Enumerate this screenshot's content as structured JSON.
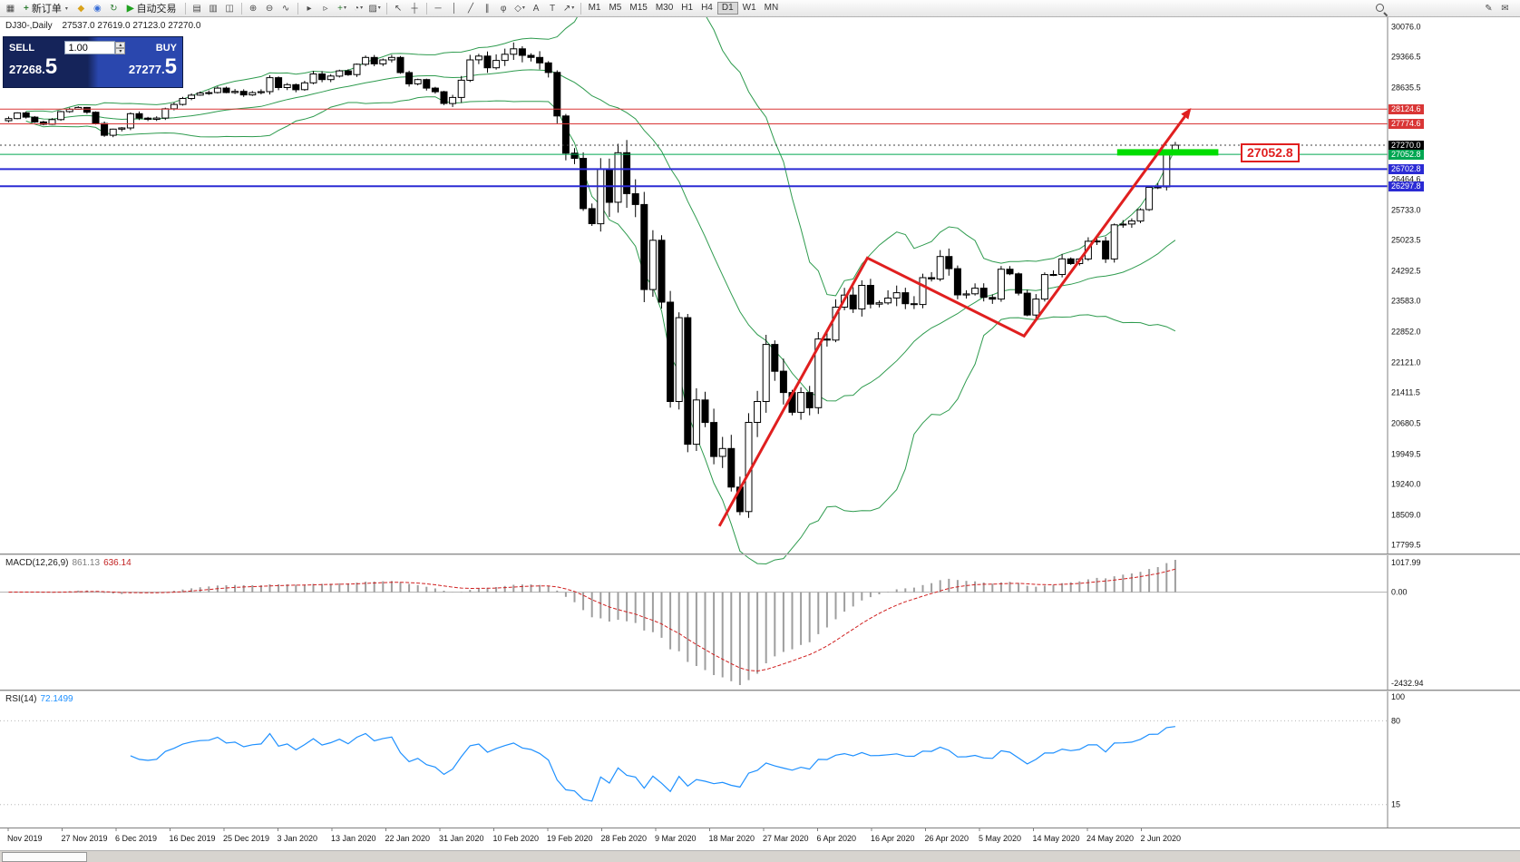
{
  "toolbar": {
    "dd_glyph": "▾",
    "items": [
      {
        "t": "icon",
        "name": "chart-window-icon",
        "g": "▦"
      },
      {
        "t": "btn",
        "name": "new-order-button",
        "g": "+",
        "gc": "#2e7d32",
        "label": "新订单",
        "dd": true
      },
      {
        "t": "icon",
        "name": "alerts-icon",
        "g": "◆",
        "c": "#d9a21b"
      },
      {
        "t": "icon",
        "name": "community-icon",
        "g": "◉",
        "c": "#3a6fd8"
      },
      {
        "t": "icon",
        "name": "refresh-icon",
        "g": "↻",
        "c": "#2e7d32"
      },
      {
        "t": "btn",
        "name": "autotrading-button",
        "g": "▶",
        "gc": "#1fa11f",
        "label": "自动交易"
      },
      {
        "t": "sep"
      },
      {
        "t": "icon",
        "name": "tile-windows-icon",
        "g": "▤"
      },
      {
        "t": "icon",
        "name": "bar-chart-icon",
        "g": "▥"
      },
      {
        "t": "icon",
        "name": "candlestick-chart-icon",
        "g": "◫"
      },
      {
        "t": "sep"
      },
      {
        "t": "icon",
        "name": "zoom-in-icon",
        "g": "⊕"
      },
      {
        "t": "icon",
        "name": "zoom-out-icon",
        "g": "⊖"
      },
      {
        "t": "icon",
        "name": "line-chart-icon",
        "g": "∿"
      },
      {
        "t": "sep"
      },
      {
        "t": "icon",
        "name": "auto-scroll-icon",
        "g": "▸"
      },
      {
        "t": "icon",
        "name": "chart-shift-icon",
        "g": "▹"
      },
      {
        "t": "icon",
        "name": "indicators-icon",
        "g": "+",
        "c": "#2e7d32",
        "dd": true
      },
      {
        "t": "icon",
        "name": "periods-icon",
        "g": "◔",
        "dd": true
      },
      {
        "t": "icon",
        "name": "templates-icon",
        "g": "▨",
        "dd": true
      },
      {
        "t": "sep"
      },
      {
        "t": "icon",
        "name": "cursor-icon",
        "g": "↖"
      },
      {
        "t": "icon",
        "name": "crosshair-icon",
        "g": "┼"
      },
      {
        "t": "sep"
      },
      {
        "t": "icon",
        "name": "horizontal-line-icon",
        "g": "─"
      },
      {
        "t": "icon",
        "name": "vertical-line-icon",
        "g": "│"
      },
      {
        "t": "icon",
        "name": "trendline-icon",
        "g": "╱"
      },
      {
        "t": "icon",
        "name": "channel-icon",
        "g": "∥"
      },
      {
        "t": "icon",
        "name": "fibonacci-icon",
        "g": "φ"
      },
      {
        "t": "icon",
        "name": "shapes-icon",
        "g": "◇",
        "dd": true
      },
      {
        "t": "icon",
        "name": "text-icon",
        "g": "A"
      },
      {
        "t": "icon",
        "name": "label-icon",
        "g": "T"
      },
      {
        "t": "icon",
        "name": "arrows-icon",
        "g": "↗",
        "dd": true
      },
      {
        "t": "sep"
      },
      {
        "t": "tf",
        "name": "timeframe-button-m1",
        "label": "M1"
      },
      {
        "t": "tf",
        "name": "timeframe-button-m5",
        "label": "M5"
      },
      {
        "t": "tf",
        "name": "timeframe-button-m15",
        "label": "M15"
      },
      {
        "t": "tf",
        "name": "timeframe-button-m30",
        "label": "M30"
      },
      {
        "t": "tf",
        "name": "timeframe-button-h1",
        "label": "H1"
      },
      {
        "t": "tf",
        "name": "timeframe-button-h4",
        "label": "H4"
      },
      {
        "t": "tf",
        "name": "timeframe-button-d1",
        "label": "D1",
        "active": true
      },
      {
        "t": "tf",
        "name": "timeframe-button-w1",
        "label": "W1"
      },
      {
        "t": "tf",
        "name": "timeframe-button-mn",
        "label": "MN"
      },
      {
        "t": "flex"
      },
      {
        "t": "mag",
        "name": "search-icon"
      },
      {
        "t": "space",
        "w": 100
      },
      {
        "t": "icon",
        "name": "pencil-icon",
        "g": "✎"
      },
      {
        "t": "icon",
        "name": "mail-icon",
        "g": "✉"
      },
      {
        "t": "space",
        "w": 4
      }
    ]
  },
  "chart": {
    "symbol_period": "DJ30-,Daily",
    "ohlc_text": "27537.0 27619.0 27123.0 27270.0"
  },
  "trade_panel": {
    "sell_label": "SELL",
    "buy_label": "BUY",
    "volume": "1.00",
    "volume_up_glyph": "▴",
    "volume_down_glyph": "▾",
    "sell_price": "27268.5",
    "sell_price_main": "27268.",
    "sell_price_big": "5",
    "buy_price": "27277.5",
    "buy_price_main": "27277.",
    "buy_price_big": "5"
  },
  "macd": {
    "label": "MACD(12,26,9)",
    "value_main": "861.13",
    "value_signal": "636.14",
    "axis": [
      {
        "label": "1017.99",
        "v": 1017.99
      },
      {
        "label": "0.00",
        "v": 0
      },
      {
        "label": "-2432.94",
        "v": -2432.94
      }
    ]
  },
  "rsi": {
    "label": "RSI(14)",
    "value": "72.1499",
    "axis": [
      {
        "label": "100",
        "v": 100
      },
      {
        "label": "80",
        "v": 80
      },
      {
        "label": "15",
        "v": 15
      }
    ],
    "levels": [
      80,
      15
    ]
  },
  "chart_data": {
    "type": "candlestick",
    "symbol": "DJ30-",
    "period": "Daily",
    "ohlc_display": {
      "open": 27537.0,
      "high": 27619.0,
      "low": 27123.0,
      "close": 27270.0
    },
    "price_range": [
      17600,
      30300
    ],
    "first_open": 27850,
    "closes": [
      27900,
      28036,
      27934,
      27821,
      27766,
      27876,
      28066,
      28121,
      28164,
      28051,
      27783,
      27503,
      27650,
      27678,
      28015,
      27910,
      27882,
      27912,
      28132,
      28235,
      28377,
      28455,
      28505,
      28515,
      28621,
      28516,
      28545,
      28462,
      28515,
      28538,
      28869,
      28635,
      28704,
      28584,
      28746,
      28957,
      28824,
      28907,
      29031,
      28940,
      29186,
      29348,
      29196,
      29290,
      29349,
      28990,
      28723,
      28823,
      28621,
      28535,
      28257,
      28400,
      28808,
      29291,
      29380,
      29103,
      29277,
      29424,
      29552,
      29398,
      29348,
      29220,
      28993,
      27961,
      27081,
      26958,
      25767,
      25410,
      26703,
      25917,
      27091,
      26121,
      25865,
      23851,
      25018,
      23553,
      21201,
      23186,
      20189,
      21237,
      20704,
      19899,
      20087,
      19174,
      18592,
      20705,
      21200,
      22552,
      21917,
      21413,
      20944,
      21413,
      21053,
      22680,
      22654,
      23434,
      23719,
      23390,
      23949,
      23504,
      23537,
      23650,
      23775,
      23515,
      23498,
      24133,
      24102,
      24634,
      24346,
      23724,
      23749,
      23883,
      23665,
      23625,
      24332,
      24222,
      23765,
      23248,
      23626,
      24206,
      24207,
      24577,
      24465,
      24575,
      24995,
      25001,
      24575,
      25383,
      25401,
      25475,
      25743,
      26270,
      26282,
      27111,
      27270
    ],
    "wick_spans": [
      [
        10,
        70
      ],
      [
        20,
        80
      ],
      [
        21,
        100
      ],
      [
        17,
        250
      ],
      [
        22,
        500
      ],
      [
        20,
        280
      ],
      [
        19,
        170
      ],
      [
        6,
        130
      ]
    ],
    "x_labels": [
      "Nov 2019",
      "27 Nov 2019",
      "6 Dec 2019",
      "16 Dec 2019",
      "25 Dec 2019",
      "3 Jan 2020",
      "13 Jan 2020",
      "22 Jan 2020",
      "31 Jan 2020",
      "10 Feb 2020",
      "19 Feb 2020",
      "28 Feb 2020",
      "9 Mar 2020",
      "18 Mar 2020",
      "27 Mar 2020",
      "6 Apr 2020",
      "16 Apr 2020",
      "26 Apr 2020",
      "5 May 2020",
      "14 May 2020",
      "24 May 2020",
      "2 Jun 2020"
    ],
    "y_ticks": [
      "30076.0",
      "29366.5",
      "28635.5",
      "26464.6",
      "25733.0",
      "25023.5",
      "24292.5",
      "23583.0",
      "22852.0",
      "22121.0",
      "21411.5",
      "20680.5",
      "19949.5",
      "19240.0",
      "18509.0",
      "17799.5"
    ],
    "horizontal_lines": [
      {
        "price": 28124.6,
        "label": "28124.6",
        "color": "#d93636",
        "width": 1
      },
      {
        "price": 27774.6,
        "label": "27774.6",
        "color": "#d93636",
        "width": 1
      },
      {
        "price": 27270.0,
        "label": "27270.0",
        "color": "#404040",
        "width": 1,
        "style": "dotted",
        "label_bg": "#000000"
      },
      {
        "price": 27052.8,
        "label": "27052.8",
        "color": "#00a651",
        "width": 1
      },
      {
        "price": 26702.8,
        "label": "26702.8",
        "color": "#2b2bd4",
        "width": 2
      },
      {
        "price": 26297.8,
        "label": "26297.8",
        "color": "#2b2bd4",
        "width": 2
      }
    ],
    "highlight_bar": {
      "price": 27100,
      "i1": 128,
      "i2": 139,
      "height": 7,
      "color": "#00dd00"
    },
    "trend_arrow": {
      "color": "#e01f1f",
      "width": 3,
      "points": [
        [
          82,
          18250
        ],
        [
          99,
          24600
        ],
        [
          117,
          22750
        ],
        [
          136,
          28100
        ]
      ]
    },
    "price_box": {
      "text": "27052.8",
      "price": 27052.8
    },
    "colors": {
      "bull": "#ffffff",
      "bear": "#000000",
      "bollinger": "#2e9b4e",
      "macd_hist": "#9e9e9e",
      "macd_signal": "#d02020",
      "rsi_line": "#1e90ff"
    },
    "indicators": {
      "bollinger": {
        "period": 20,
        "deviation": 2
      },
      "macd": {
        "fast": 12,
        "slow": 26,
        "signal": 9
      },
      "rsi": {
        "period": 14
      }
    }
  }
}
